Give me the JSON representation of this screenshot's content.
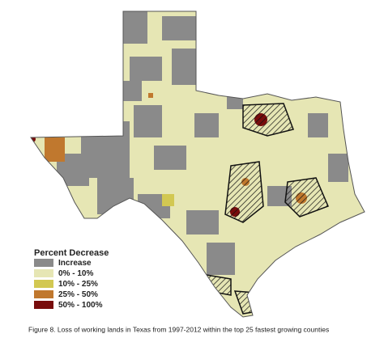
{
  "legend": {
    "title": "Percent Decrease",
    "items": [
      {
        "label": "Increase",
        "color": "#8a8a8a"
      },
      {
        "label": "0% - 10%",
        "color": "#e6e6b4"
      },
      {
        "label": "10% - 25%",
        "color": "#d2c852"
      },
      {
        "label": "25% - 50%",
        "color": "#c0782e"
      },
      {
        "label": "50% - 100%",
        "color": "#780c0c"
      }
    ]
  },
  "caption": "Figure 8. Loss of working lands in Texas from 1997-2012 within the top 25 fastest growing counties"
}
